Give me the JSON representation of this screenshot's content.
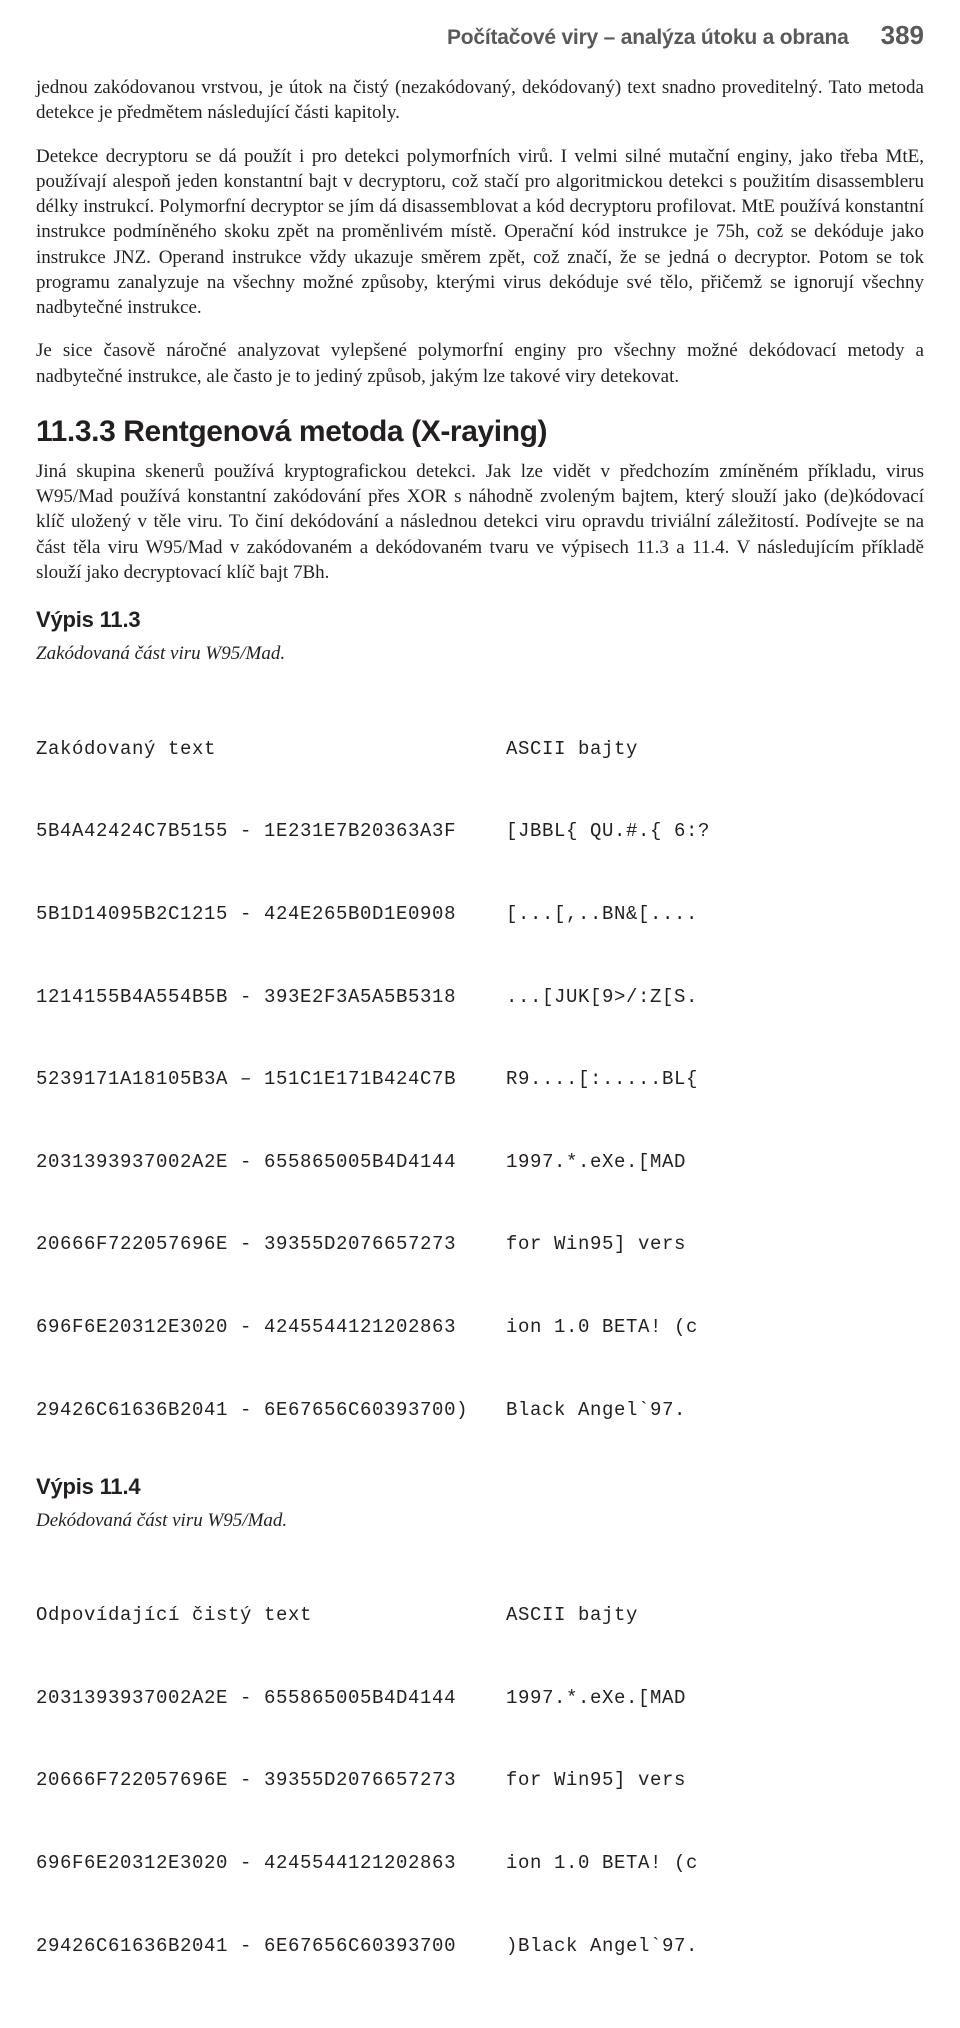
{
  "header": {
    "title": "Počítačové viry – analýza útoku a obrana",
    "page_number": "389"
  },
  "para1": "jednou zakódovanou vrstvou, je útok na čistý (nezakódovaný, dekódovaný) text snadno proveditelný. Tato metoda detekce je předmětem následující části kapitoly.",
  "para2": "Detekce decryptoru se dá použít i pro detekci polymorfních virů. I velmi silné mutační enginy, jako třeba MtE, používají alespoň jeden konstantní bajt v decryptoru, což stačí pro algoritmickou detekci s použitím disassembleru délky instrukcí. Polymorfní decryptor se jím dá disassemblovat a kód decryptoru profilovat. MtE používá konstantní instrukce podmíněného skoku zpět na proměnlivém místě. Operační kód instrukce je 75h, což se dekóduje jako instrukce JNZ. Operand instrukce vždy ukazuje směrem zpět, což značí, že se jedná o decryptor. Potom se tok programu zanalyzuje na všechny možné způsoby, kterými virus dekóduje své tělo, přičemž se ignorují všechny nadbytečné instrukce.",
  "para3": "Je sice časově náročné analyzovat vylepšené polymorfní enginy pro všechny možné dekódovací metody a nadbytečné instrukce, ale často je to jediný způsob, jakým lze takové viry detekovat.",
  "section_title": "11.3.3 Rentgenová metoda (X-raying)",
  "para4": "Jiná skupina skenerů používá kryptografickou detekci. Jak lze vidět v předchozím zmíněném příkladu, virus W95/Mad používá konstantní zakódování přes XOR s náhodně zvoleným bajtem, který slouží jako (de)kódovací klíč uložený v těle viru. To činí dekódování a následnou detekci viru opravdu triviální záležitostí. Podívejte se na část těla viru W95/Mad v zakódovaném a dekódovaném tvaru ve výpisech 11.3 a 11.4. V následujícím příkladě slouží jako decryptovací klíč bajt 7Bh.",
  "listing3": {
    "title": "Výpis 11.3",
    "caption": "Zakódovaná část viru W95/Mad.",
    "header_left": "Zakódovaný text",
    "header_right": "ASCII bajty",
    "rows": [
      {
        "left": "5B4A42424C7B5155 - 1E231E7B20363A3F",
        "right": "[JBBL{ QU.#.{ 6:?"
      },
      {
        "left": "5B1D14095B2C1215 - 424E265B0D1E0908",
        "right": "[...[,..BN&[...."
      },
      {
        "left": "1214155B4A554B5B - 393E2F3A5A5B5318",
        "right": "...[JUK[9>/:Z[S."
      },
      {
        "left": "5239171A18105B3A – 151C1E171B424C7B",
        "right": "R9....[:.....BL{"
      },
      {
        "left": "2031393937002A2E - 655865005B4D4144",
        "right": "1997.*.eXe.[MAD"
      },
      {
        "left": "20666F722057696E - 39355D2076657273",
        "right": "for Win95] vers"
      },
      {
        "left": "696F6E20312E3020 - 4245544121202863",
        "right": "ion 1.0 BETA! (c"
      },
      {
        "left": "29426C61636B2041 - 6E67656C60393700)",
        "right": "Black Angel`97."
      }
    ]
  },
  "listing4": {
    "title": "Výpis 11.4",
    "caption": "Dekódovaná část viru W95/Mad.",
    "header_left": "Odpovídající čistý text",
    "header_right": "ASCII bajty",
    "rows": [
      {
        "left": "2031393937002A2E - 655865005B4D4144",
        "right": "1997.*.eXe.[MAD"
      },
      {
        "left": "20666F722057696E - 39355D2076657273",
        "right": "for Win95] vers"
      },
      {
        "left": "696F6E20312E3020 - 4245544121202863",
        "right": "ion 1.0 BETA! (c"
      },
      {
        "left": "29426C61636B2041 - 6E67656C60393700",
        "right": ")Black Angel`97."
      }
    ]
  }
}
